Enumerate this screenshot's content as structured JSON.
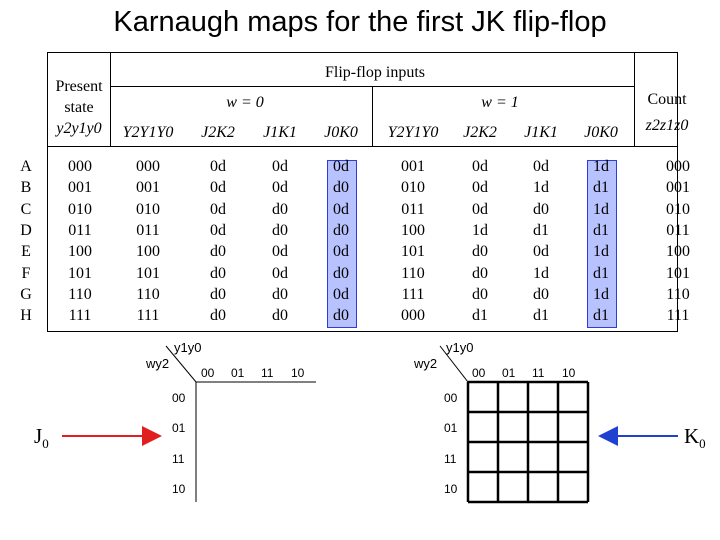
{
  "title": "Karnaugh maps for the first JK flip-flop",
  "table": {
    "present_state_label": [
      "Present",
      "state",
      "y2y1y0"
    ],
    "flipflop_inputs_label": "Flip-flop inputs",
    "w0_label": "w = 0",
    "w1_label": "w = 1",
    "count_label": [
      "Count",
      "z2z1z0"
    ],
    "column_headers_w0": [
      "Y2Y1Y0",
      "J2K2",
      "J1K1",
      "J0K0"
    ],
    "column_headers_w1": [
      "Y2Y1Y0",
      "J2K2",
      "J1K1",
      "J0K0"
    ],
    "row_letters": [
      "A",
      "B",
      "C",
      "D",
      "E",
      "F",
      "G",
      "H"
    ],
    "present_state": [
      "000",
      "001",
      "010",
      "011",
      "100",
      "101",
      "110",
      "111"
    ],
    "w0": {
      "next_state": [
        "000",
        "001",
        "010",
        "011",
        "100",
        "101",
        "110",
        "111"
      ],
      "j2k2": [
        "0d",
        "0d",
        "0d",
        "0d",
        "d0",
        "d0",
        "d0",
        "d0"
      ],
      "j1k1": [
        "0d",
        "0d",
        "d0",
        "d0",
        "0d",
        "0d",
        "d0",
        "d0"
      ],
      "j0k0": [
        "0d",
        "d0",
        "0d",
        "d0",
        "0d",
        "d0",
        "0d",
        "d0"
      ]
    },
    "w1": {
      "next_state": [
        "001",
        "010",
        "011",
        "100",
        "101",
        "110",
        "111",
        "000"
      ],
      "j2k2": [
        "0d",
        "0d",
        "0d",
        "1d",
        "d0",
        "d0",
        "d0",
        "d1"
      ],
      "j1k1": [
        "0d",
        "1d",
        "d0",
        "d1",
        "0d",
        "1d",
        "d0",
        "d1"
      ],
      "j0k0": [
        "1d",
        "d1",
        "1d",
        "d1",
        "1d",
        "d1",
        "1d",
        "d1"
      ]
    },
    "count": [
      "000",
      "001",
      "010",
      "011",
      "100",
      "101",
      "110",
      "111"
    ]
  },
  "kmap_left": {
    "col_var": "y1y0",
    "row_var": "wy2",
    "col_labels": [
      "00",
      "01",
      "11",
      "10"
    ],
    "row_labels": [
      "00",
      "01",
      "11",
      "10"
    ],
    "side_label": "J",
    "side_sub": "0",
    "arrow_color": "#e02020"
  },
  "kmap_right": {
    "col_var": "y1y0",
    "row_var": "wy2",
    "col_labels": [
      "00",
      "01",
      "11",
      "10"
    ],
    "row_labels": [
      "00",
      "01",
      "11",
      "10"
    ],
    "side_label": "K",
    "side_sub": "0",
    "arrow_color": "#2040d0"
  },
  "colors": {
    "highlight_fill": "#b8c2ff",
    "highlight_border": "#2b3fd6"
  }
}
